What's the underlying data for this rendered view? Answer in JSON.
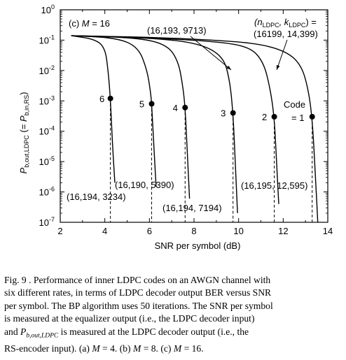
{
  "figure": {
    "panel_prefix": "(c) ",
    "panel_var": "M",
    "panel_value": " = 16",
    "chart_data": {
      "type": "line",
      "xlabel": "SNR per symbol (dB)",
      "ylabel": {
        "main_P": "P",
        "main_sub": "b,out,LDPC",
        "mid": " (= ",
        "paren_P": "P",
        "paren_sub": "b,in,RS",
        "end": ")"
      },
      "xlim": [
        2,
        14
      ],
      "xticks": [
        2,
        4,
        6,
        8,
        10,
        12,
        14
      ],
      "ylim_log10": [
        -7,
        0
      ],
      "yticks": [
        {
          "base": "10",
          "exp": "0"
        },
        {
          "base": "10",
          "exp": "-1"
        },
        {
          "base": "10",
          "exp": "-2"
        },
        {
          "base": "10",
          "exp": "-3"
        },
        {
          "base": "10",
          "exp": "-4"
        },
        {
          "base": "10",
          "exp": "-5"
        },
        {
          "base": "10",
          "exp": "-6"
        },
        {
          "base": "10",
          "exp": "-7"
        }
      ],
      "legend_header": {
        "open": "(n",
        "n_sub": "LDPC",
        "mid": ", k",
        "k_sub": "LDPC",
        "close": ") ="
      },
      "series": [
        {
          "name": "1",
          "code": "(16199, 14,399)",
          "marker": [
            13.3,
            0.0003
          ],
          "points": [
            [
              2.5,
              0.14
            ],
            [
              6,
              0.125
            ],
            [
              9,
              0.1
            ],
            [
              11,
              0.075
            ],
            [
              12.2,
              0.04
            ],
            [
              12.8,
              0.015
            ],
            [
              13.1,
              0.003
            ],
            [
              13.3,
              0.0003
            ],
            [
              13.45,
              3e-06
            ],
            [
              13.55,
              1e-07
            ]
          ]
        },
        {
          "name": "2",
          "code": "(16,195, 12,595)",
          "marker": [
            11.6,
            0.0003
          ],
          "points": [
            [
              2.5,
              0.14
            ],
            [
              6,
              0.12
            ],
            [
              9,
              0.09
            ],
            [
              10.5,
              0.06
            ],
            [
              11.1,
              0.02
            ],
            [
              11.4,
              0.003
            ],
            [
              11.6,
              0.0003
            ],
            [
              11.7,
              1e-05
            ],
            [
              11.8,
              4e-07
            ]
          ]
        },
        {
          "name": "3",
          "code": "(16,193, 9713)",
          "marker": [
            9.75,
            0.0004
          ],
          "points": [
            [
              2.5,
              0.14
            ],
            [
              6,
              0.12
            ],
            [
              8.2,
              0.08
            ],
            [
              9.3,
              0.03
            ],
            [
              9.6,
              0.005
            ],
            [
              9.75,
              0.0004
            ],
            [
              9.85,
              1e-05
            ],
            [
              9.95,
              2e-07
            ]
          ]
        },
        {
          "name": "4",
          "code": "(16,194, 7194)",
          "marker": [
            7.6,
            0.0006
          ],
          "points": [
            [
              2.5,
              0.14
            ],
            [
              5.5,
              0.12
            ],
            [
              6.8,
              0.07
            ],
            [
              7.3,
              0.02
            ],
            [
              7.5,
              0.003
            ],
            [
              7.6,
              0.0006
            ],
            [
              7.7,
              2e-05
            ],
            [
              7.8,
              6e-07
            ]
          ]
        },
        {
          "name": "5",
          "code": "(16,190, 5390)",
          "marker": [
            6.1,
            0.0008
          ],
          "points": [
            [
              2.5,
              0.14
            ],
            [
              4.5,
              0.12
            ],
            [
              5.5,
              0.06
            ],
            [
              5.9,
              0.01
            ],
            [
              6.05,
              0.002
            ],
            [
              6.1,
              0.0008
            ],
            [
              6.2,
              3e-05
            ],
            [
              6.3,
              1.5e-06
            ]
          ]
        },
        {
          "name": "6",
          "code": "(16,194, 3234)",
          "marker": [
            4.25,
            0.0012
          ],
          "points": [
            [
              2.5,
              0.14
            ],
            [
              3.5,
              0.11
            ],
            [
              4.0,
              0.06
            ],
            [
              4.15,
              0.01
            ],
            [
              4.25,
              0.0012
            ],
            [
              4.35,
              3e-05
            ],
            [
              4.45,
              2e-06
            ]
          ]
        }
      ],
      "code_label": {
        "word": "Code",
        "eq": "= 1"
      }
    }
  },
  "caption": {
    "fig_label": "Fig. 9",
    "line1_rest": " . Performance of inner LDPC codes on an AWGN channel with",
    "line2": "six different rates, in terms of LDPC decoder output BER versus SNR",
    "line3": "per symbol. The BP algorithm uses 50 iterations. The SNR per symbol",
    "line4": "is measured at the equalizer output (i.e., the LDPC decoder input)",
    "line5_and": "and ",
    "line5_P": "P",
    "line5_sub": "b,out,LDPC",
    "line5_rest": " is measured at the LDPC decoder output (i.e., the",
    "line6_a": "RS-encoder input). (a) ",
    "line6_M1": "M",
    "line6_b": " = 4. (b) ",
    "line6_M2": "M",
    "line6_c": " = 8. (c) ",
    "line6_M3": "M",
    "line6_d": " = 16."
  }
}
